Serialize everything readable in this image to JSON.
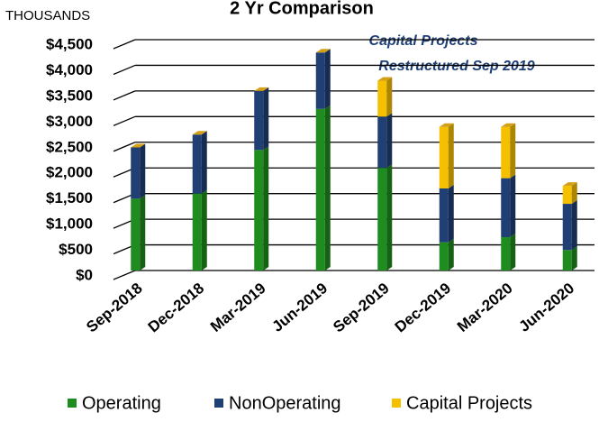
{
  "chart_data": {
    "type": "bar",
    "stacked": true,
    "title": "2 Yr Comparison",
    "ylabel": "THOUSANDS",
    "annotations": [
      "Capital Projects",
      "Restructured  Sep 2019"
    ],
    "categories": [
      "Sep-2018",
      "Dec-2018",
      "Mar-2019",
      "Jun-2019",
      "Sep-2019",
      "Dec-2019",
      "Mar-2020",
      "Jun-2020"
    ],
    "series": [
      {
        "name": "Operating",
        "color": "#1e8c1e",
        "values": [
          1400,
          1500,
          2350,
          3150,
          2000,
          550,
          650,
          400
        ]
      },
      {
        "name": "NonOperating",
        "color": "#1f3f75",
        "values": [
          1000,
          1150,
          1150,
          1100,
          1000,
          1050,
          1150,
          900
        ]
      },
      {
        "name": "Capital Projects",
        "color": "#f5c000",
        "values": [
          0,
          0,
          0,
          0,
          700,
          1200,
          1000,
          350
        ]
      }
    ],
    "ylim": [
      0,
      4500
    ],
    "yticks": [
      {
        "value": 0,
        "label": "$0"
      },
      {
        "value": 500,
        "label": "$500"
      },
      {
        "value": 1000,
        "label": "$1,000"
      },
      {
        "value": 1500,
        "label": "$1,500"
      },
      {
        "value": 2000,
        "label": "$2,000"
      },
      {
        "value": 2500,
        "label": "$2,500"
      },
      {
        "value": 3000,
        "label": "$3,000"
      },
      {
        "value": 3500,
        "label": "$3,500"
      },
      {
        "value": 4000,
        "label": "$4,000"
      },
      {
        "value": 4500,
        "label": "$4,500"
      }
    ],
    "grid": true,
    "legend": "bottom"
  }
}
